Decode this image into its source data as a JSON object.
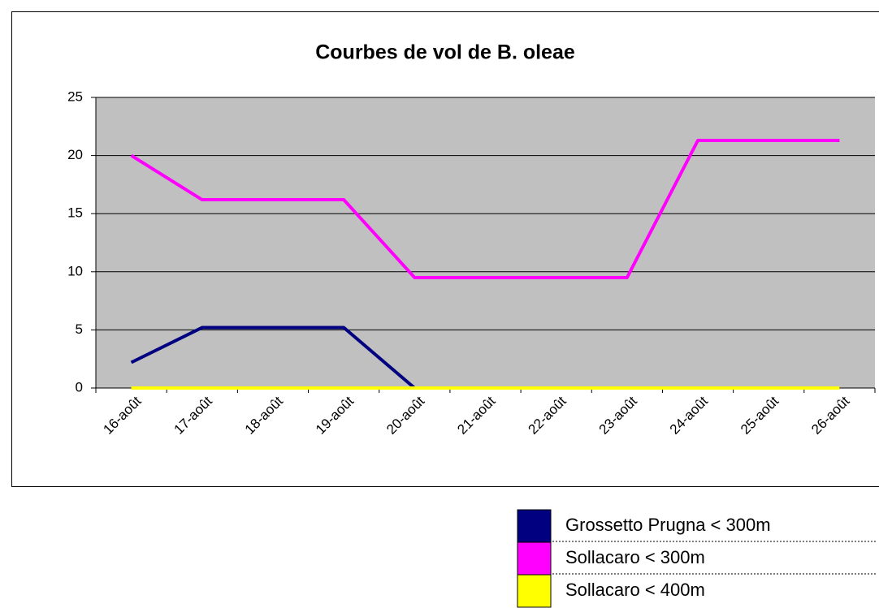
{
  "chart_data": {
    "type": "line",
    "title": "Courbes de vol de B. oleae",
    "categories": [
      "16-août",
      "17-août",
      "18-août",
      "19-août",
      "20-août",
      "21-août",
      "22-août",
      "23-août",
      "24-août",
      "25-août",
      "26-août"
    ],
    "series": [
      {
        "name": "Grossetto Prugna < 300m",
        "color": "#000080",
        "values": [
          2.2,
          5.2,
          5.2,
          5.2,
          0,
          0,
          0,
          0,
          0,
          0,
          0
        ]
      },
      {
        "name": "Sollacaro < 300m",
        "color": "#ff00ff",
        "values": [
          20,
          16.2,
          16.2,
          16.2,
          9.5,
          9.5,
          9.5,
          9.5,
          21.3,
          21.3,
          21.3
        ]
      },
      {
        "name": "Sollacaro < 400m",
        "color": "#ffff00",
        "values": [
          0,
          0,
          0,
          0,
          0,
          0,
          0,
          0,
          0,
          0,
          0
        ]
      }
    ],
    "ylim": [
      0,
      25
    ],
    "yticks": [
      0,
      5,
      10,
      15,
      20,
      25
    ],
    "grid": true,
    "plot_background": "#c0c0c0"
  }
}
